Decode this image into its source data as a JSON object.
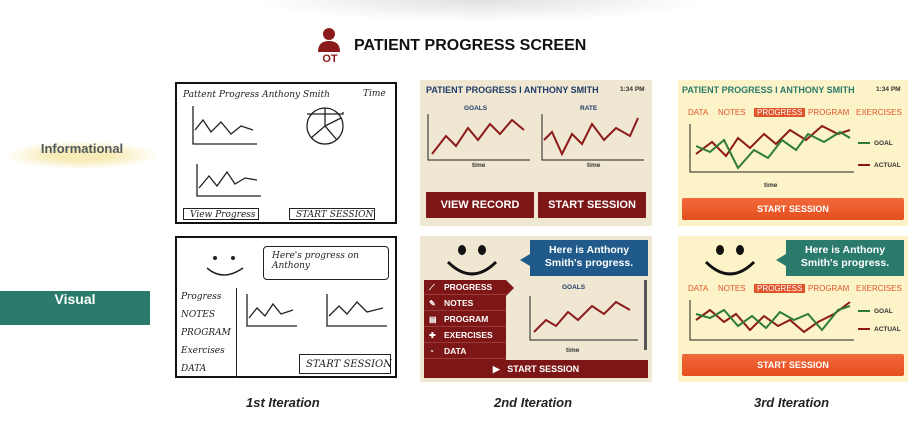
{
  "title": "PATIENT PROGRESS SCREEN",
  "ot_label": "OT",
  "rows": {
    "informational": "Informational",
    "visual": "Visual"
  },
  "iterations": [
    "1st Iteration",
    "2nd Iteration",
    "3rd Iteration"
  ],
  "colors": {
    "dark_red": "#7d1717",
    "orange": "#e0562a",
    "green": "#2a7b6c",
    "blue": "#1f5a8a",
    "line_red": "#8b1a1a",
    "line_green": "#2e7d32"
  },
  "sketch1": {
    "title": "Pattent Progress Anthony Smith",
    "time": "Time",
    "btn_left": "View Progress",
    "btn_right": "START SESSION"
  },
  "sketch2": {
    "bubble": "Here's progress on Anthony",
    "menu": [
      "Progress",
      "NOTES",
      "PROGRAM",
      "Exercises",
      "DATA"
    ],
    "start": "START SESSION"
  },
  "mock2a": {
    "header": "PATIENT PROGRESS  I  ANTHONY SMITH",
    "time": "1:34 PM",
    "chart_left": "GOALS",
    "chart_right": "RATE",
    "axis": "time",
    "btn_left": "VIEW RECORD",
    "btn_right": "START SESSION"
  },
  "mock2b": {
    "bubble": "Here is Anthony Smith's progress.",
    "menu": [
      "PROGRESS",
      "NOTES",
      "PROGRAM",
      "EXERCISES",
      "DATA"
    ],
    "chart": "GOALS",
    "axis": "time",
    "start": "START SESSION",
    "play_icon": "play-icon"
  },
  "mock3a": {
    "header": "PATIENT PROGRESS  I  ANTHONY SMITH",
    "time": "1:34 PM",
    "nav": [
      "DATA",
      "NOTES",
      "PROGRESS",
      "PROGRAM",
      "EXERCISES"
    ],
    "active": "PROGRESS",
    "legend": [
      "GOAL",
      "ACTUAL"
    ],
    "axis": "time",
    "start": "START SESSION"
  },
  "mock3b": {
    "bubble": "Here is Anthony Smith's progress.",
    "nav": [
      "DATA",
      "NOTES",
      "PROGRESS",
      "PROGRAM",
      "EXERCISES"
    ],
    "active": "PROGRESS",
    "legend": [
      "GOAL",
      "ACTUAL"
    ],
    "start": "START SESSION"
  }
}
